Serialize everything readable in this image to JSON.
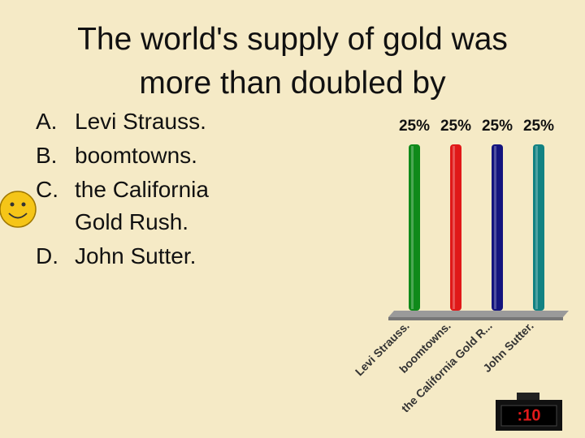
{
  "title": "The world's supply of gold was more than doubled by",
  "options": [
    {
      "letter": "A.",
      "text": "Levi Strauss."
    },
    {
      "letter": "B.",
      "text": "boomtowns."
    },
    {
      "letter": "C.",
      "text": "the California Gold Rush."
    },
    {
      "letter": "D.",
      "text": "John Sutter."
    }
  ],
  "chart_data": {
    "type": "bar",
    "categories": [
      "Levi Strauss.",
      "boomtowns.",
      "the California Gold R...",
      "John Sutter."
    ],
    "values": [
      25,
      25,
      25,
      25
    ],
    "value_labels": [
      "25%",
      "25%",
      "25%",
      "25%"
    ],
    "colors": [
      "#0f8a1a",
      "#e01818",
      "#14147e",
      "#128282"
    ],
    "ylim": [
      0,
      25
    ]
  },
  "timer": ":10"
}
